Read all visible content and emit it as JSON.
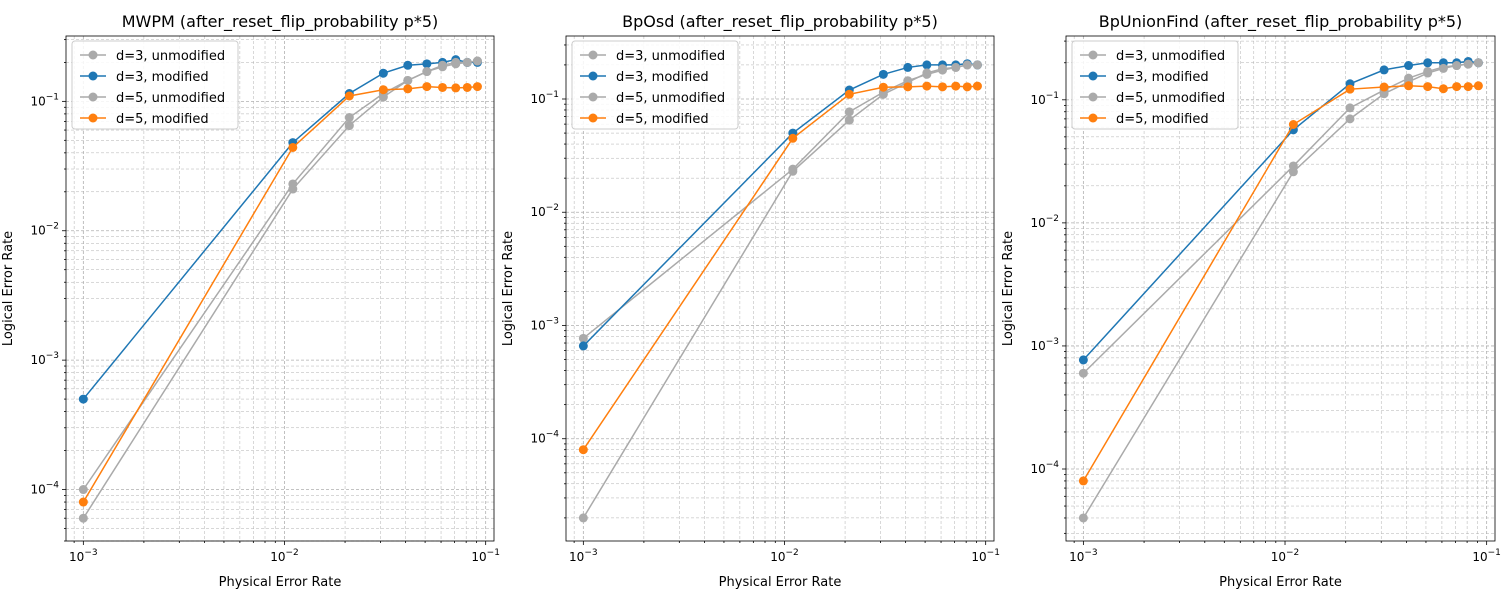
{
  "chart_data": [
    {
      "type": "line",
      "title": "MWPM (after_reset_flip_probability p*5)",
      "xlabel": "Physical Error Rate",
      "ylabel": "Logical Error Rate",
      "xscale": "log",
      "yscale": "log",
      "xlim": [
        0.00082,
        0.11
      ],
      "ylim": [
        4e-05,
        0.32
      ],
      "grid": true,
      "legend_position": "top-left",
      "series": [
        {
          "name": "d=3, unmodified",
          "color": "#aaaaaa",
          "x": [
            0.001,
            0.011,
            0.021,
            0.031,
            0.041,
            0.051,
            0.061,
            0.071,
            0.081,
            0.091
          ],
          "y": [
            0.0001,
            0.023,
            0.075,
            0.115,
            0.145,
            0.17,
            0.185,
            0.195,
            0.2,
            0.205
          ]
        },
        {
          "name": "d=3, modified",
          "color": "#1f77b4",
          "x": [
            0.001,
            0.011,
            0.021,
            0.031,
            0.041,
            0.051,
            0.061,
            0.071,
            0.081,
            0.091
          ],
          "y": [
            0.0005,
            0.048,
            0.115,
            0.165,
            0.19,
            0.195,
            0.2,
            0.21,
            0.2,
            0.2
          ]
        },
        {
          "name": "d=5, unmodified",
          "color": "#aaaaaa",
          "x": [
            0.001,
            0.011,
            0.021,
            0.031,
            0.041,
            0.051,
            0.061,
            0.071,
            0.081,
            0.091
          ],
          "y": [
            6e-05,
            0.021,
            0.065,
            0.108,
            0.145,
            0.17,
            0.19,
            0.2,
            0.2,
            0.205
          ]
        },
        {
          "name": "d=5, modified",
          "color": "#ff7f0e",
          "x": [
            0.001,
            0.011,
            0.021,
            0.031,
            0.041,
            0.051,
            0.061,
            0.071,
            0.081,
            0.091
          ],
          "y": [
            8e-05,
            0.044,
            0.11,
            0.123,
            0.125,
            0.13,
            0.128,
            0.127,
            0.128,
            0.13
          ]
        }
      ]
    },
    {
      "type": "line",
      "title": "BpOsd (after_reset_flip_probability p*5)",
      "xlabel": "Physical Error Rate",
      "ylabel": "Logical Error Rate",
      "xscale": "log",
      "yscale": "log",
      "xlim": [
        0.00082,
        0.11
      ],
      "ylim": [
        1.25e-05,
        0.36
      ],
      "grid": true,
      "legend_position": "top-left",
      "series": [
        {
          "name": "d=3, unmodified",
          "color": "#aaaaaa",
          "x": [
            0.001,
            0.011,
            0.021,
            0.031,
            0.041,
            0.051,
            0.061,
            0.071,
            0.081,
            0.091
          ],
          "y": [
            0.00077,
            0.024,
            0.077,
            0.115,
            0.145,
            0.165,
            0.18,
            0.19,
            0.2,
            0.2
          ]
        },
        {
          "name": "d=3, modified",
          "color": "#1f77b4",
          "x": [
            0.001,
            0.011,
            0.021,
            0.031,
            0.041,
            0.051,
            0.061,
            0.071,
            0.081,
            0.091
          ],
          "y": [
            0.00066,
            0.05,
            0.12,
            0.165,
            0.19,
            0.2,
            0.2,
            0.2,
            0.205,
            0.2
          ]
        },
        {
          "name": "d=5, unmodified",
          "color": "#aaaaaa",
          "x": [
            0.001,
            0.011,
            0.021,
            0.031,
            0.041,
            0.051,
            0.061,
            0.071,
            0.081,
            0.091
          ],
          "y": [
            2e-05,
            0.023,
            0.065,
            0.11,
            0.14,
            0.17,
            0.185,
            0.19,
            0.2,
            0.2
          ]
        },
        {
          "name": "d=5, modified",
          "color": "#ff7f0e",
          "x": [
            0.001,
            0.011,
            0.021,
            0.031,
            0.041,
            0.051,
            0.061,
            0.071,
            0.081,
            0.091
          ],
          "y": [
            8e-05,
            0.045,
            0.11,
            0.127,
            0.128,
            0.13,
            0.128,
            0.13,
            0.128,
            0.13
          ]
        }
      ]
    },
    {
      "type": "line",
      "title": "BpUnionFind (after_reset_flip_probability p*5)",
      "xlabel": "Physical Error Rate",
      "ylabel": "Logical Error Rate",
      "xscale": "log",
      "yscale": "log",
      "xlim": [
        0.00082,
        0.11
      ],
      "ylim": [
        2.6e-05,
        0.33
      ],
      "grid": true,
      "legend_position": "top-left",
      "series": [
        {
          "name": "d=3, unmodified",
          "color": "#aaaaaa",
          "x": [
            0.001,
            0.011,
            0.021,
            0.031,
            0.041,
            0.051,
            0.061,
            0.071,
            0.081,
            0.091
          ],
          "y": [
            0.0006,
            0.029,
            0.086,
            0.12,
            0.15,
            0.17,
            0.185,
            0.19,
            0.195,
            0.2
          ]
        },
        {
          "name": "d=3, modified",
          "color": "#1f77b4",
          "x": [
            0.001,
            0.011,
            0.021,
            0.031,
            0.041,
            0.051,
            0.061,
            0.071,
            0.081,
            0.091
          ],
          "y": [
            0.00077,
            0.057,
            0.135,
            0.175,
            0.19,
            0.2,
            0.2,
            0.2,
            0.205,
            0.2
          ]
        },
        {
          "name": "d=5, unmodified",
          "color": "#aaaaaa",
          "x": [
            0.001,
            0.011,
            0.021,
            0.031,
            0.041,
            0.051,
            0.061,
            0.071,
            0.081,
            0.091
          ],
          "y": [
            4e-05,
            0.026,
            0.07,
            0.112,
            0.14,
            0.165,
            0.18,
            0.19,
            0.195,
            0.2
          ]
        },
        {
          "name": "d=5, modified",
          "color": "#ff7f0e",
          "x": [
            0.001,
            0.011,
            0.021,
            0.031,
            0.041,
            0.051,
            0.061,
            0.071,
            0.081,
            0.091
          ],
          "y": [
            8e-05,
            0.063,
            0.122,
            0.127,
            0.13,
            0.128,
            0.123,
            0.128,
            0.128,
            0.13
          ]
        }
      ]
    }
  ]
}
